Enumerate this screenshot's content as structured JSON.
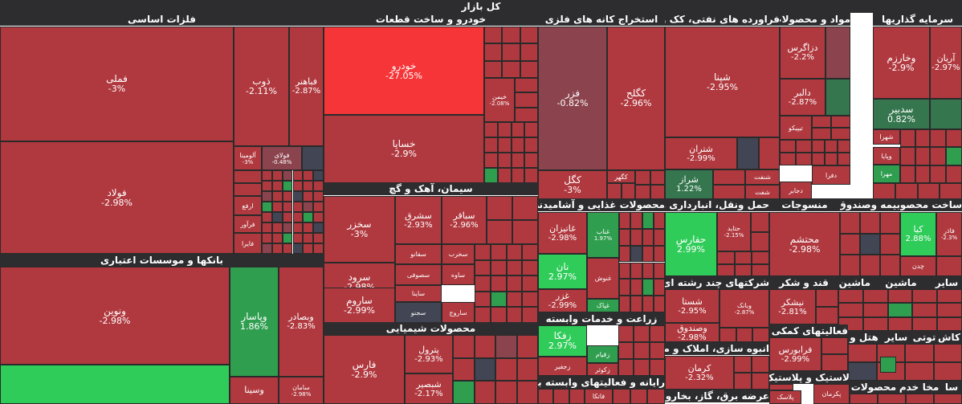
{
  "chart_data": {
    "type": "treemap",
    "title": "کل بازار",
    "colors": {
      "neg_strong": "#f63538",
      "neg": "#b0393f",
      "neg_dark": "#8b444e",
      "neutral": "#414554",
      "pos": "#30cc5a",
      "pos_mid": "#2f9e4f",
      "pos_dark": "#35764e"
    },
    "sectors": [
      {
        "name": "فلزات اساسی",
        "stocks": [
          {
            "name": "فملی",
            "change": "-3%",
            "value": -3
          },
          {
            "name": "فولاد",
            "change": "-2.98%",
            "value": -2.98
          },
          {
            "name": "ذوب",
            "change": "-2.11%",
            "value": -2.11
          },
          {
            "name": "فباهنر",
            "change": "-2.87%",
            "value": -2.87
          },
          {
            "name": "آلومینا",
            "change": "-3%",
            "value": -3
          },
          {
            "name": "فولای",
            "change": "-0.48%",
            "value": -0.48
          },
          {
            "name": "ارفع",
            "change": "",
            "value": -2.5
          },
          {
            "name": "فرآور",
            "change": "",
            "value": -2.5
          },
          {
            "name": "فایرا",
            "change": "",
            "value": -2.5
          }
        ]
      },
      {
        "name": "بانکها و موسسات اعتباری",
        "stocks": [
          {
            "name": "ونوین",
            "change": "-2.98%",
            "value": -2.98
          },
          {
            "name": "وپاسار",
            "change": "1.86%",
            "value": 1.86
          },
          {
            "name": "وبصادر",
            "change": "-2.83%",
            "value": -2.83
          },
          {
            "name": "وسینا",
            "change": "",
            "value": -2.5
          },
          {
            "name": "سامان",
            "change": "-2.98%",
            "value": -2.98
          }
        ]
      },
      {
        "name": "خودرو و ساخت قطعات",
        "stocks": [
          {
            "name": "خودرو",
            "change": "-27.05%",
            "value": -27.05
          },
          {
            "name": "خساپا",
            "change": "-2.9%",
            "value": -2.9
          },
          {
            "name": "خیمن",
            "change": "-2.08%",
            "value": -2.08
          }
        ]
      },
      {
        "name": "سیمان، آهک و گچ",
        "stocks": [
          {
            "name": "سخزر",
            "change": "-3%",
            "value": -3
          },
          {
            "name": "سشرق",
            "change": "-2.93%",
            "value": -2.93
          },
          {
            "name": "سباقر",
            "change": "-2.96%",
            "value": -2.96
          },
          {
            "name": "سرود",
            "change": "-2.98%",
            "value": -2.98
          },
          {
            "name": "ساروم",
            "change": "-2.99%",
            "value": -2.99
          },
          {
            "name": "سفانو",
            "change": "",
            "value": -2.5
          },
          {
            "name": "سخرب",
            "change": "",
            "value": -2.5
          },
          {
            "name": "سصوفی",
            "change": "",
            "value": -2.5
          },
          {
            "name": "ساوه",
            "change": "",
            "value": -2.5
          },
          {
            "name": "ساینا",
            "change": "",
            "value": -2.5
          },
          {
            "name": "سجنو",
            "change": "",
            "value": 0
          },
          {
            "name": "ساروج",
            "change": "",
            "value": -2.5
          }
        ]
      },
      {
        "name": "محصولات شیمیایی",
        "stocks": [
          {
            "name": "فارس",
            "change": "-2.9%",
            "value": -2.9
          },
          {
            "name": "پترول",
            "change": "-2.93%",
            "value": -2.93
          },
          {
            "name": "شبصیر",
            "change": "-2.17%",
            "value": -2.17
          }
        ]
      },
      {
        "name": "استخراج کانه های فلزی",
        "stocks": [
          {
            "name": "فزر",
            "change": "-0.82%",
            "value": -0.82
          },
          {
            "name": "کگلح",
            "change": "-2.96%",
            "value": -2.96
          },
          {
            "name": "کگل",
            "change": "-3%",
            "value": -3
          },
          {
            "name": "کگهر",
            "change": "",
            "value": -2.5
          }
        ]
      },
      {
        "name": "فراورده های نفتی، کک و",
        "stocks": [
          {
            "name": "شپنا",
            "change": "-2.95%",
            "value": -2.95
          },
          {
            "name": "شتران",
            "change": "-2.99%",
            "value": -2.99
          },
          {
            "name": "شراز",
            "change": "1.22%",
            "value": 1.22
          },
          {
            "name": "شنفت",
            "change": "",
            "value": -2.5
          },
          {
            "name": "شفت",
            "change": "",
            "value": -2.5
          }
        ]
      },
      {
        "name": "مواد و محصولات دارو",
        "stocks": [
          {
            "name": "دزاگرس",
            "change": "-2.2%",
            "value": -2.2
          },
          {
            "name": "دالبر",
            "change": "-2.87%",
            "value": -2.87
          },
          {
            "name": "تیپیکو",
            "change": "",
            "value": -2.5
          },
          {
            "name": "دفرا",
            "change": "",
            "value": -2.5
          },
          {
            "name": "دجابر",
            "change": "",
            "value": -2.5
          }
        ]
      },
      {
        "name": "سرمایه گذاریها",
        "stocks": [
          {
            "name": "وخارزم",
            "change": "-2.9%",
            "value": -2.9
          },
          {
            "name": "آریان",
            "change": "-2.97%",
            "value": -2.97
          },
          {
            "name": "سدبیر",
            "change": "0.82%",
            "value": 0.82
          },
          {
            "name": "شهرا",
            "change": "",
            "value": -2.5
          },
          {
            "name": "وپایا",
            "change": "",
            "value": -2.5
          },
          {
            "name": "مهرا",
            "change": "",
            "value": 1.5
          }
        ]
      },
      {
        "name": "محصولات غذایی و آشامیدنی ب",
        "stocks": [
          {
            "name": "غاتیزان",
            "change": "-2.98%",
            "value": -2.98
          },
          {
            "name": "غناب",
            "change": "1.97%",
            "value": 1.97
          },
          {
            "name": "نان",
            "change": "2.97%",
            "value": 2.97
          },
          {
            "name": "غنوش",
            "change": "",
            "value": -2.5
          },
          {
            "name": "غزر",
            "change": "-2.99%",
            "value": -2.99
          },
          {
            "name": "غپاک",
            "change": "",
            "value": 2.0
          }
        ]
      },
      {
        "name": "حمل ونقل، انبارداری و ار",
        "stocks": [
          {
            "name": "حفارس",
            "change": "2.99%",
            "value": 2.99
          },
          {
            "name": "حتاید",
            "change": "-2.15%",
            "value": -2.15
          }
        ]
      },
      {
        "name": "منسوجات",
        "stocks": [
          {
            "name": "محتشم",
            "change": "-2.98%",
            "value": -2.98
          }
        ]
      },
      {
        "name": "بیمه وصندوق",
        "stocks": []
      },
      {
        "name": "ساخت محصو",
        "stocks": [
          {
            "name": "کیا",
            "change": "2.88%",
            "value": 2.88
          },
          {
            "name": "فاذر",
            "change": "-2.3%",
            "value": -2.3
          },
          {
            "name": "چدن",
            "change": "",
            "value": -2.5
          }
        ]
      },
      {
        "name": "زراعت و خدمات وابسته",
        "stocks": [
          {
            "name": "زفکا",
            "change": "2.97%",
            "value": 2.97
          },
          {
            "name": "زقیام",
            "change": "",
            "value": 2.0
          },
          {
            "name": "زجفیر",
            "change": "",
            "value": -2.5
          },
          {
            "name": "زکوثر",
            "change": "",
            "value": -2.5
          }
        ]
      },
      {
        "name": "شرکتهای چند رشته ای ص",
        "stocks": [
          {
            "name": "شستا",
            "change": "-2.95%",
            "value": -2.95
          },
          {
            "name": "وبانک",
            "change": "-2.87%",
            "value": -2.87
          },
          {
            "name": "وصندوق",
            "change": "-2.98%",
            "value": -2.98
          }
        ]
      },
      {
        "name": "قند و شکر",
        "stocks": [
          {
            "name": "نیشکر",
            "change": "-2.81%",
            "value": -2.81
          }
        ]
      },
      {
        "name": "ماشین آل",
        "stocks": []
      },
      {
        "name": "ماشین",
        "stocks": []
      },
      {
        "name": "سایر",
        "stocks": []
      },
      {
        "name": "انبوه سازی، املاک و مس",
        "stocks": [
          {
            "name": "کرمان",
            "change": "-2.32%",
            "value": -2.32
          }
        ]
      },
      {
        "name": "فعالیتهای کمکی به",
        "stocks": [
          {
            "name": "فرابورس",
            "change": "-2.99%",
            "value": -2.99
          }
        ]
      },
      {
        "name": "هتل و",
        "stocks": []
      },
      {
        "name": "کاش",
        "stocks": []
      },
      {
        "name": "توتی",
        "stocks": []
      },
      {
        "name": "سایر",
        "stocks": []
      },
      {
        "name": "لاستیک و پلاستیک",
        "stocks": [
          {
            "name": "پکرمان",
            "change": "",
            "value": -2.5
          },
          {
            "name": "پلاسک",
            "change": "",
            "value": -2.5
          }
        ]
      },
      {
        "name": "رایانه و فعالیتهای وابسته به آن",
        "stocks": [
          {
            "name": "فاتکا",
            "change": "",
            "value": -2.5
          }
        ]
      },
      {
        "name": "عرضه برق، گاز، بخارو آب",
        "stocks": []
      },
      {
        "name": "محصولات",
        "stocks": []
      },
      {
        "name": "خدم",
        "stocks": []
      },
      {
        "name": "مخا",
        "stocks": []
      },
      {
        "name": "سا",
        "stocks": []
      }
    ]
  }
}
